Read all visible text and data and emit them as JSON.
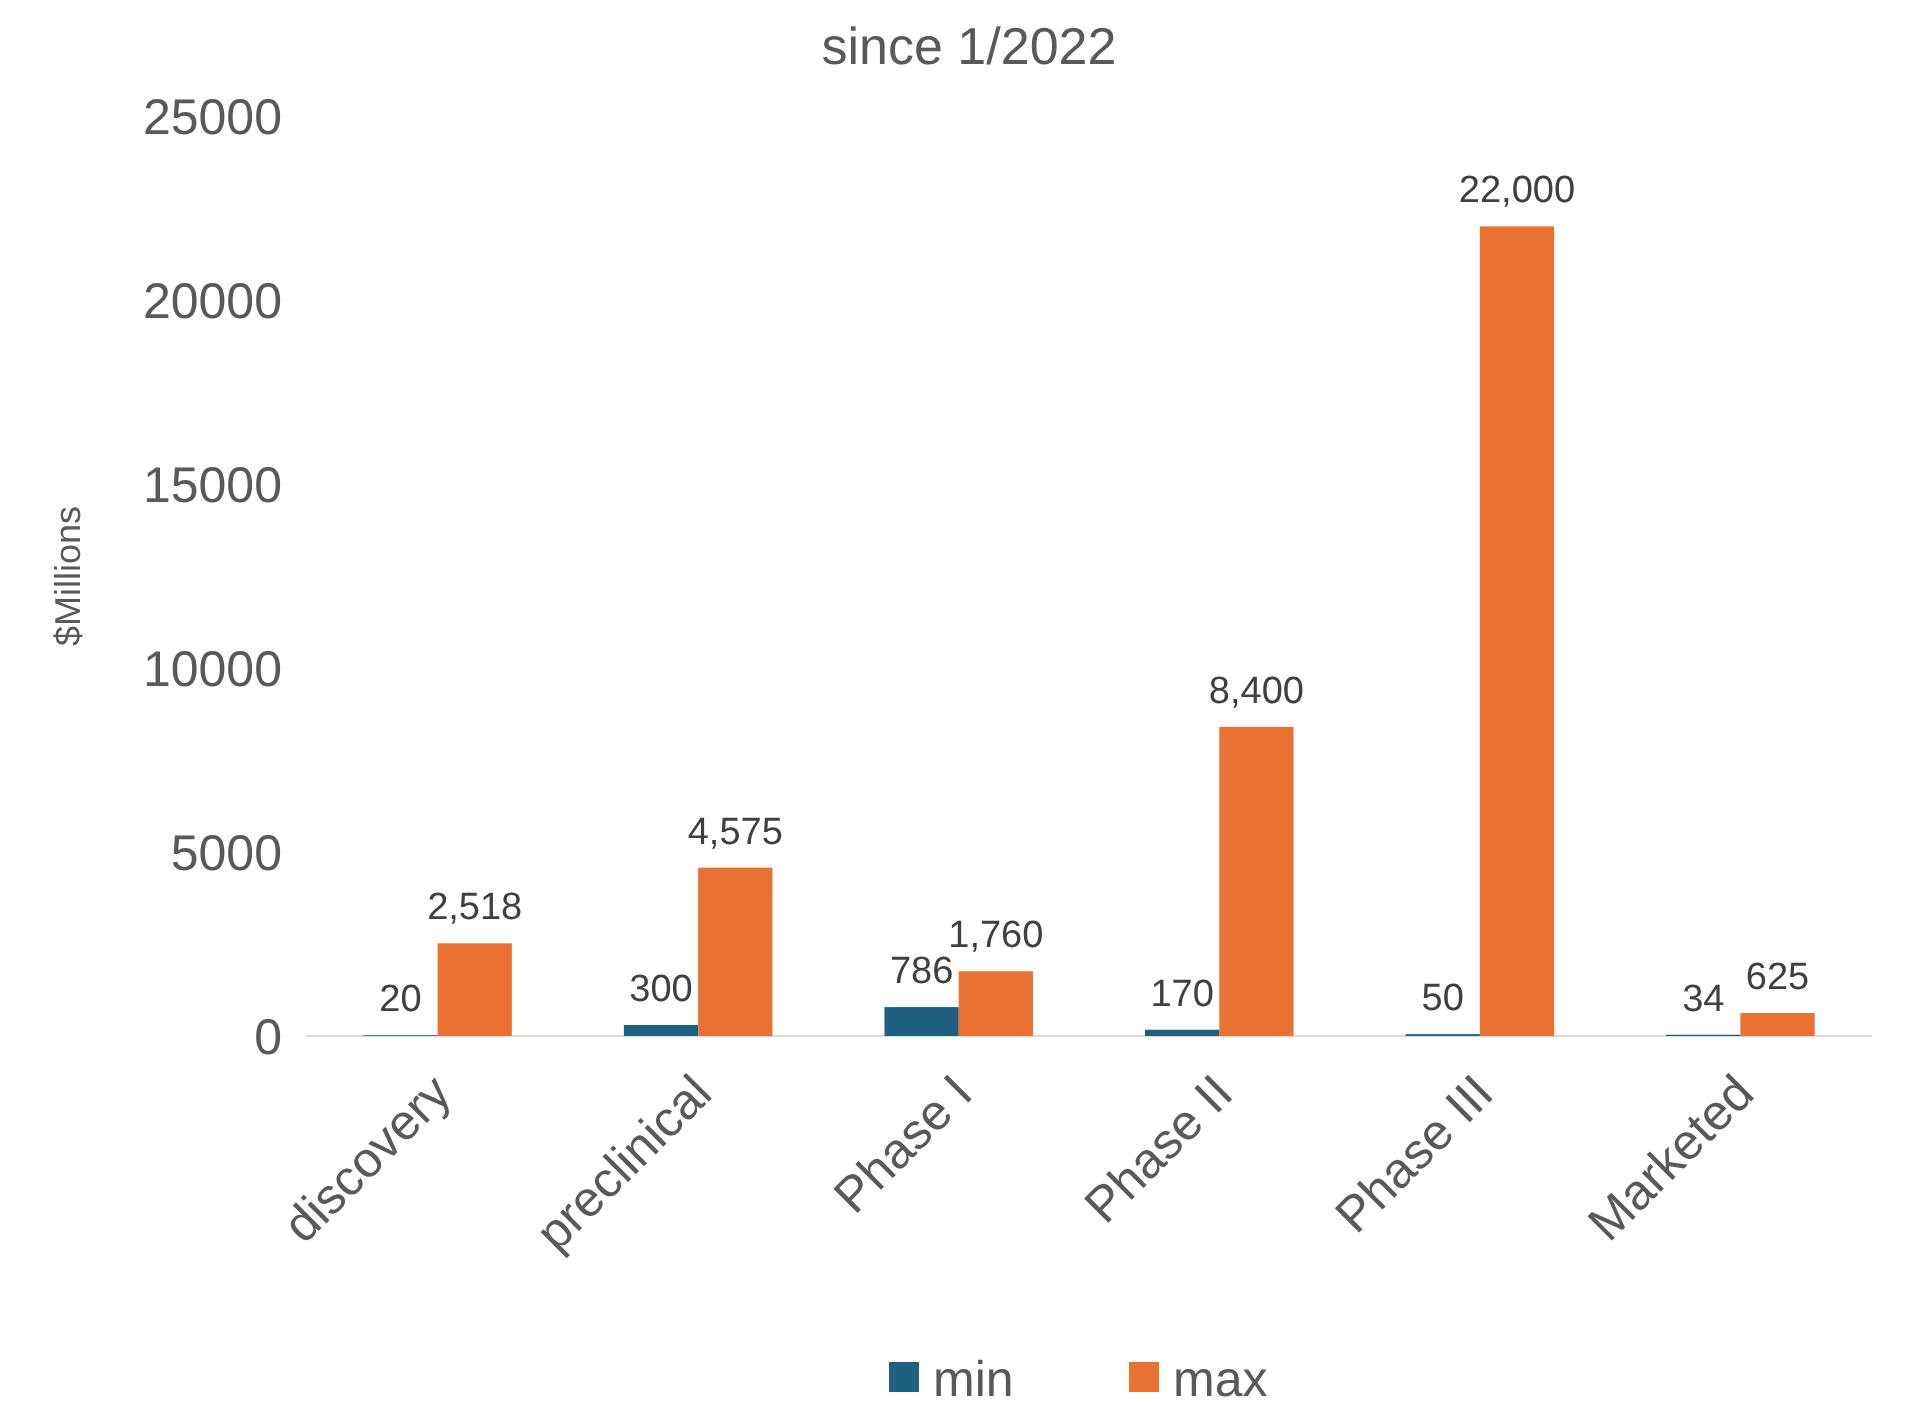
{
  "chart_data": {
    "type": "bar",
    "title": "since 1/2022",
    "ylabel": "$Millions",
    "categories": [
      "discovery",
      "preclinical",
      "Phase I",
      "Phase II",
      "Phase III",
      "Marketed"
    ],
    "series": [
      {
        "name": "min",
        "color": "#1f5f82",
        "values": [
          20,
          300,
          786,
          170,
          50,
          34
        ],
        "value_labels": [
          "20",
          "300",
          "786",
          "170",
          "50",
          "34"
        ]
      },
      {
        "name": "max",
        "color": "#e97132",
        "values": [
          2518,
          4575,
          1760,
          8400,
          22000,
          625
        ],
        "value_labels": [
          "2,518",
          "4,575",
          "1,760",
          "8,400",
          "22,000",
          "625"
        ]
      }
    ],
    "ylim": [
      0,
      25000
    ],
    "yticks": [
      0,
      5000,
      10000,
      15000,
      20000,
      25000
    ],
    "grid": false,
    "legend": "bottom"
  }
}
